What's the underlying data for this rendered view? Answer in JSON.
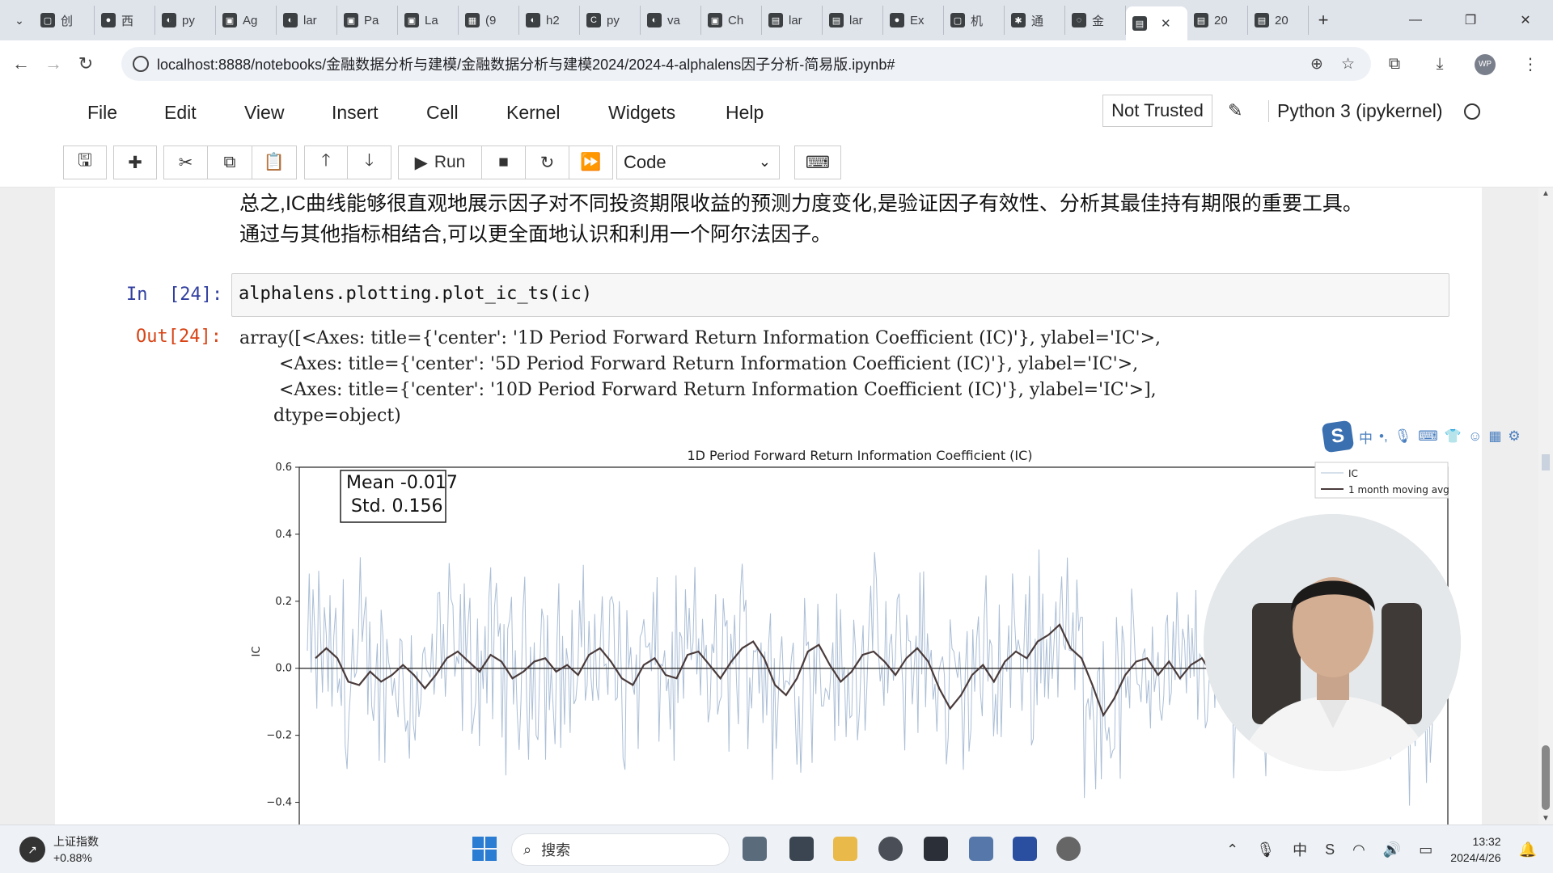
{
  "tabs": [
    {
      "fav": "▢",
      "label": "创"
    },
    {
      "fav": "●",
      "label": "西"
    },
    {
      "fav": "◐",
      "label": "py"
    },
    {
      "fav": "▣",
      "label": "Ag"
    },
    {
      "fav": "◐",
      "label": "lar"
    },
    {
      "fav": "▣",
      "label": "Pa"
    },
    {
      "fav": "▣",
      "label": "La"
    },
    {
      "fav": "▦",
      "label": "(9"
    },
    {
      "fav": "◐",
      "label": "h2"
    },
    {
      "fav": "C",
      "label": "py"
    },
    {
      "fav": "◐",
      "label": "va"
    },
    {
      "fav": "▣",
      "label": "Ch"
    },
    {
      "fav": "▤",
      "label": "lar"
    },
    {
      "fav": "▤",
      "label": "lar"
    },
    {
      "fav": "●",
      "label": "Ex"
    },
    {
      "fav": "▢",
      "label": "机"
    },
    {
      "fav": "✱",
      "label": "通"
    },
    {
      "fav": "◌",
      "label": "金"
    }
  ],
  "active_tab": {
    "fav": "▤",
    "close": "✕"
  },
  "tabs_after": [
    {
      "fav": "▤",
      "label": "20"
    },
    {
      "fav": "▤",
      "label": "20"
    }
  ],
  "address": {
    "url": "localhost:8888/notebooks/金融数据分析与建模/金融数据分析与建模2024/2024-4-alphalens因子分析-简易版.ipynb#"
  },
  "menu": [
    "File",
    "Edit",
    "View",
    "Insert",
    "Cell",
    "Kernel",
    "Widgets",
    "Help"
  ],
  "trust_label": "Not Trusted",
  "kernel_label": "Python 3 (ipykernel)",
  "toolbar": {
    "run_label": "Run",
    "cell_type": "Code"
  },
  "markdown": {
    "line1": "总之,IC曲线能够很直观地展示因子对不同投资期限收益的预测力度变化,是验证因子有效性、分析其最佳持有期限的重要工具。",
    "line2": "通过与其他指标相结合,可以更全面地认识和利用一个阿尔法因子。"
  },
  "cell": {
    "in_prompt": "In  [24]:",
    "code": "alphalens.plotting.plot_ic_ts(ic)",
    "out_prompt": "Out[24]:",
    "output_lines": [
      "array([<Axes: title={'center': '1D Period Forward Return Information Coefficient (IC)'}, ylabel='IC'>,",
      "       <Axes: title={'center': '5D Period Forward Return Information Coefficient (IC)'}, ylabel='IC'>,",
      "       <Axes: title={'center': '10D Period Forward Return Information Coefficient (IC)'}, ylabel='IC'>],",
      "      dtype=object)"
    ]
  },
  "chart_data": {
    "type": "line",
    "title": "1D Period Forward Return Information Coefficient (IC)",
    "ylabel": "IC",
    "xlabel": "",
    "ylim": [
      -0.5,
      0.6
    ],
    "yticks": [
      "0.6",
      "0.4",
      "0.2",
      "0.0",
      "−0.2",
      "−0.4"
    ],
    "ytick_values": [
      0.6,
      0.4,
      0.2,
      0.0,
      -0.2,
      -0.4
    ],
    "stats": {
      "mean_label": "Mean -0.017",
      "std_label": "Std. 0.156"
    },
    "legend_placement": "top-right",
    "grid": false,
    "series": [
      {
        "name": "IC",
        "color": "#8fa8c8",
        "kind": "daily"
      },
      {
        "name": "1 month moving avg",
        "color": "#4a3b3b",
        "kind": "smoothed",
        "values": [
          0.03,
          0.06,
          0.03,
          -0.04,
          -0.05,
          -0.01,
          -0.04,
          -0.02,
          0.01,
          -0.02,
          -0.06,
          -0.02,
          0.03,
          0.05,
          0.02,
          -0.01,
          0.04,
          0.02,
          -0.03,
          -0.01,
          0.02,
          0.03,
          -0.01,
          0.01,
          -0.02,
          0.04,
          0.06,
          0.02,
          -0.03,
          -0.05,
          0.01,
          0.03,
          -0.02,
          -0.03,
          0.04,
          0.05,
          0.01,
          -0.03,
          0.02,
          0.06,
          0.08,
          0.03,
          -0.05,
          -0.08,
          -0.03,
          0.05,
          0.07,
          0.01,
          -0.04,
          -0.01,
          0.04,
          0.05,
          0.02,
          -0.02,
          0.03,
          0.06,
          0.02,
          -0.06,
          -0.12,
          -0.08,
          -0.02,
          0.01,
          -0.04,
          0.02,
          0.05,
          0.03,
          0.08,
          0.1,
          0.13,
          0.06,
          0.03,
          -0.05,
          -0.14,
          -0.09,
          -0.02,
          0.02,
          0.03,
          -0.02,
          0.02,
          -0.03,
          0.01,
          0.03,
          -0.02,
          -0.04,
          0.02,
          0.01,
          -0.04,
          -0.02,
          0.03,
          -0.01,
          0.01,
          0.03,
          0.02,
          -0.02,
          0.01,
          0.02,
          0.04,
          -0.02,
          -0.05,
          -0.01,
          0.03,
          -0.03,
          -0.06
        ]
      }
    ]
  },
  "ime": {
    "mode": "中",
    "punct": "•,"
  },
  "taskbar": {
    "stock_name": "上证指数",
    "stock_change": "+0.88%",
    "search_placeholder": "搜索",
    "time": "13:32",
    "date": "2024/4/26"
  }
}
